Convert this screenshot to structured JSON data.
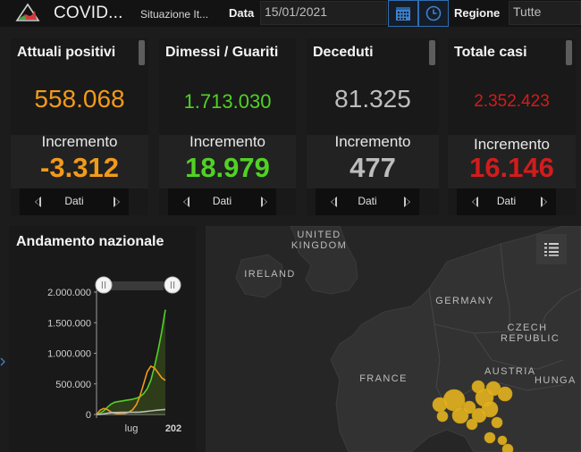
{
  "header": {
    "title": "COVID...",
    "subtitle": "Situazione It...",
    "date_label": "Data",
    "date_value": "15/01/2021",
    "region_label": "Regione",
    "region_value": "Tutte"
  },
  "cards": [
    {
      "title": "Attuali positivi",
      "value": "558.068",
      "inc_label": "Incremento",
      "inc_value": "-3.312",
      "nav_label": "Dati",
      "value_color": "#f29a1a",
      "inc_color": "#f29a1a"
    },
    {
      "title": "Dimessi / Guariti",
      "value": "1.713.030",
      "inc_label": "Incremento",
      "inc_value": "18.979",
      "nav_label": "Dati",
      "value_color": "#50d224",
      "inc_color": "#50d224"
    },
    {
      "title": "Deceduti",
      "value": "81.325",
      "inc_label": "Incremento",
      "inc_value": "477",
      "nav_label": "Dati",
      "value_color": "#bdbdbd",
      "inc_color": "#bdbdbd"
    },
    {
      "title": "Totale casi",
      "value": "2.352.423",
      "inc_label": "Incremento",
      "inc_value": "16.146",
      "nav_label": "Dati",
      "value_color": "#d21c1c",
      "inc_color": "#d21c1c"
    }
  ],
  "chart_panel": {
    "title": "Andamento nazionale"
  },
  "chart_data": {
    "type": "line",
    "y_ticks": [
      "2.000.000",
      "1.500.000",
      "1.000.000",
      "500.000",
      "0"
    ],
    "x_ticks": [
      "lug",
      "202"
    ],
    "ylim": [
      0,
      2000000
    ],
    "series": [
      {
        "color": "#50d224",
        "values": [
          0,
          20000,
          60000,
          120000,
          170000,
          200000,
          210000,
          220000,
          230000,
          240000,
          250000,
          265000,
          290000,
          340000,
          420000,
          560000,
          780000,
          1050000,
          1350000,
          1713030
        ]
      },
      {
        "color": "#f29a1a",
        "values": [
          0,
          70000,
          100000,
          80000,
          40000,
          20000,
          12000,
          14000,
          20000,
          40000,
          80000,
          160000,
          300000,
          500000,
          700000,
          790000,
          760000,
          680000,
          600000,
          558068
        ]
      },
      {
        "color": "#bdbdbd",
        "values": [
          0,
          2000,
          10000,
          20000,
          28000,
          32000,
          34000,
          35000,
          35500,
          36000,
          37000,
          38000,
          40000,
          45000,
          52000,
          58000,
          65000,
          72000,
          77000,
          81325
        ]
      }
    ]
  },
  "map": {
    "labels": [
      "UNITED KINGDOM",
      "IRELAND",
      "GERMANY",
      "CZECH REPUBLIC",
      "FRANCE",
      "AUSTRIA",
      "HUNGA"
    ],
    "legend_icon": "list-legend-icon"
  },
  "colors": {
    "accent_blue": "#2f6fb0",
    "bubble": "#e0b020"
  }
}
